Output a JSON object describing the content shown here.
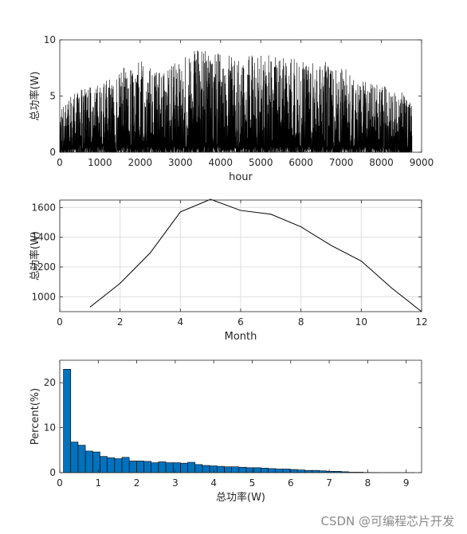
{
  "watermark": "CSDN @可编程芯片开发",
  "chart_data": [
    {
      "type": "line",
      "subtype": "dense-signal",
      "xlabel": "hour",
      "ylabel": "总功率(W)",
      "xlim": [
        0,
        9000
      ],
      "ylim": [
        0,
        10
      ],
      "xticks": [
        0,
        1000,
        2000,
        3000,
        4000,
        5000,
        6000,
        7000,
        8000,
        9000
      ],
      "yticks": [
        0,
        5,
        10
      ],
      "grid": false,
      "color": "#000000",
      "x_range_data": [
        0,
        8760
      ],
      "envelope_x": [
        0,
        500,
        1000,
        1500,
        2000,
        2500,
        3000,
        3500,
        4000,
        4500,
        5000,
        5500,
        6000,
        6500,
        7000,
        7500,
        8000,
        8500,
        8760
      ],
      "envelope_max": [
        4.3,
        5.6,
        6.0,
        7.5,
        8.1,
        8.0,
        8.3,
        9.4,
        8.9,
        8.4,
        9.0,
        8.6,
        8.4,
        8.2,
        7.6,
        6.6,
        6.0,
        5.4,
        4.2
      ]
    },
    {
      "type": "line",
      "xlabel": "Month",
      "ylabel": "总功率(W)",
      "xlim": [
        0,
        12
      ],
      "ylim": [
        900,
        1650
      ],
      "xticks": [
        0,
        2,
        4,
        6,
        8,
        10,
        12
      ],
      "yticks": [
        1000,
        1200,
        1400,
        1600
      ],
      "grid": true,
      "color": "#000000",
      "x": [
        1,
        2,
        3,
        4,
        5,
        6,
        7,
        8,
        9,
        10,
        11,
        12
      ],
      "y": [
        930,
        1090,
        1295,
        1570,
        1655,
        1580,
        1555,
        1470,
        1345,
        1240,
        1060,
        900
      ]
    },
    {
      "type": "bar",
      "xlabel": "总功率(W)",
      "ylabel": "Percent(%)",
      "xlim": [
        0,
        9.4
      ],
      "ylim": [
        0,
        25
      ],
      "xticks": [
        0,
        1,
        2,
        3,
        4,
        5,
        6,
        7,
        8,
        9
      ],
      "yticks": [
        0,
        10,
        20
      ],
      "grid": false,
      "color": "#0072BD",
      "bin_width": 0.19,
      "bin_centers": [
        0.19,
        0.38,
        0.57,
        0.76,
        0.95,
        1.14,
        1.33,
        1.52,
        1.71,
        1.9,
        2.09,
        2.28,
        2.47,
        2.66,
        2.85,
        3.04,
        3.23,
        3.42,
        3.61,
        3.8,
        3.99,
        4.18,
        4.37,
        4.56,
        4.75,
        4.94,
        5.13,
        5.32,
        5.51,
        5.7,
        5.89,
        6.08,
        6.27,
        6.46,
        6.65,
        6.84,
        7.03,
        7.22,
        7.41,
        7.6,
        7.79,
        7.98,
        8.17,
        8.36,
        8.55,
        8.74,
        8.93,
        9.12
      ],
      "values": [
        23.0,
        6.8,
        6.1,
        4.8,
        4.6,
        3.6,
        3.3,
        3.1,
        3.4,
        2.6,
        2.6,
        2.5,
        2.2,
        2.4,
        2.2,
        2.2,
        2.1,
        2.3,
        1.8,
        1.6,
        1.5,
        1.4,
        1.3,
        1.3,
        1.2,
        1.1,
        1.1,
        1.0,
        0.9,
        0.8,
        0.8,
        0.7,
        0.6,
        0.5,
        0.5,
        0.4,
        0.3,
        0.3,
        0.2,
        0.1,
        0.1,
        0.05,
        0.04,
        0.03,
        0.02,
        0.02,
        0.01,
        0.01
      ]
    }
  ]
}
